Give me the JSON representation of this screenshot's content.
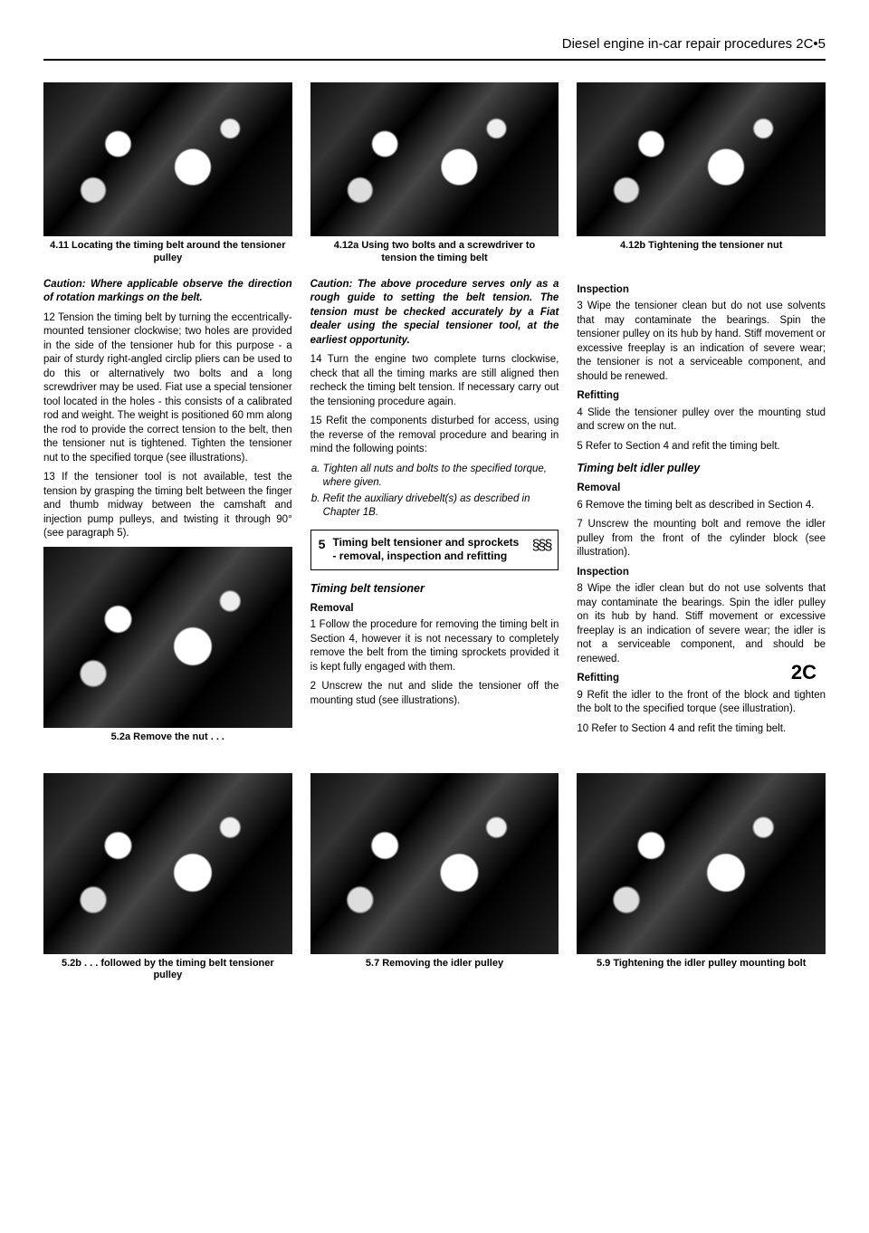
{
  "header": {
    "text": "Diesel engine in-car repair procedures  2C•5"
  },
  "sideTab": "2C",
  "topFigs": {
    "f411": "4.11  Locating the timing belt around the tensioner pulley",
    "f412a": "4.12a  Using two bolts and a screwdriver to tension the timing belt",
    "f412b": "4.12b  Tightening the tensioner nut"
  },
  "col1": {
    "caution": "Caution: Where applicable observe the direction of rotation markings on the belt.",
    "p12": "12 Tension the timing belt by turning the eccentrically-mounted tensioner clockwise; two holes are provided in the side of the tensioner hub for this purpose - a pair of sturdy right-angled circlip pliers can be used to do this or alternatively two bolts and a long screwdriver may be used. Fiat use a special tensioner tool located in the holes - this consists of a calibrated rod and weight. The weight is positioned 60 mm along the rod to provide the correct tension to the belt, then the tensioner nut is tightened. Tighten the tensioner nut to the specified torque (see illustrations).",
    "p13": "13 If the tensioner tool is not available, test the tension by grasping the timing belt between the finger and thumb midway between the camshaft and injection pump pulleys, and twisting it through 90° (see paragraph 5).",
    "cap52a": "5.2a  Remove the nut . . .",
    "cap52b": "5.2b  . . . followed by the timing belt tensioner pulley"
  },
  "col2": {
    "caution": "Caution: The above procedure serves only as a rough guide to setting the belt tension. The tension must be checked accurately by a Fiat dealer using the special tensioner tool, at the earliest opportunity.",
    "p14": "14 Turn the engine two complete turns clockwise, check that all the timing marks are still aligned then recheck the timing belt tension. If necessary carry out the tensioning procedure again.",
    "p15": "15 Refit the components disturbed for access, using the reverse of the removal procedure and bearing in mind the following points:",
    "li_a": "Tighten all nuts and bolts to the specified torque, where given.",
    "li_b": "Refit the auxiliary drivebelt(s) as described in Chapter 1B.",
    "box_num": "5",
    "box_txt": "Timing belt tensioner and sprockets - removal, inspection and refitting",
    "box_diff": "§§§",
    "h_tbt": "Timing belt tensioner",
    "h_rem": "Removal",
    "p1": "1 Follow the procedure for removing the timing belt in Section 4, however it is not necessary to completely remove the belt from the timing sprockets provided it is kept fully engaged with them.",
    "p2": "2 Unscrew the nut and slide the tensioner off the mounting stud (see illustrations).",
    "cap57": "5.7  Removing the idler pulley"
  },
  "col3": {
    "h_insp": "Inspection",
    "p3": "3 Wipe the tensioner clean but do not use solvents that may contaminate the bearings. Spin the tensioner pulley on its hub by hand. Stiff movement or excessive freeplay is an indication of severe wear; the tensioner is not a serviceable component, and should be renewed.",
    "h_refit": "Refitting",
    "p4": "4 Slide the tensioner pulley over the mounting stud and screw on the nut.",
    "p5": "5 Refer to Section 4 and refit the timing belt.",
    "h_idler": "Timing belt idler pulley",
    "h_rem2": "Removal",
    "p6": "6 Remove the timing belt as described in Section 4.",
    "p7": "7 Unscrew the mounting bolt and remove the idler pulley from the front of the cylinder block (see illustration).",
    "h_insp2": "Inspection",
    "p8": "8 Wipe the idler clean but do not use solvents that may contaminate the bearings. Spin the idler pulley on its hub by hand. Stiff movement or excessive freeplay is an indication of severe wear; the idler is not a serviceable component, and should be renewed.",
    "h_refit2": "Refitting",
    "p9": "9 Refit the idler to the front of the block and tighten the bolt to the specified torque (see illustration).",
    "p10": "10 Refer to Section 4 and refit the timing belt.",
    "cap59": "5.9  Tightening the idler pulley mounting bolt"
  }
}
